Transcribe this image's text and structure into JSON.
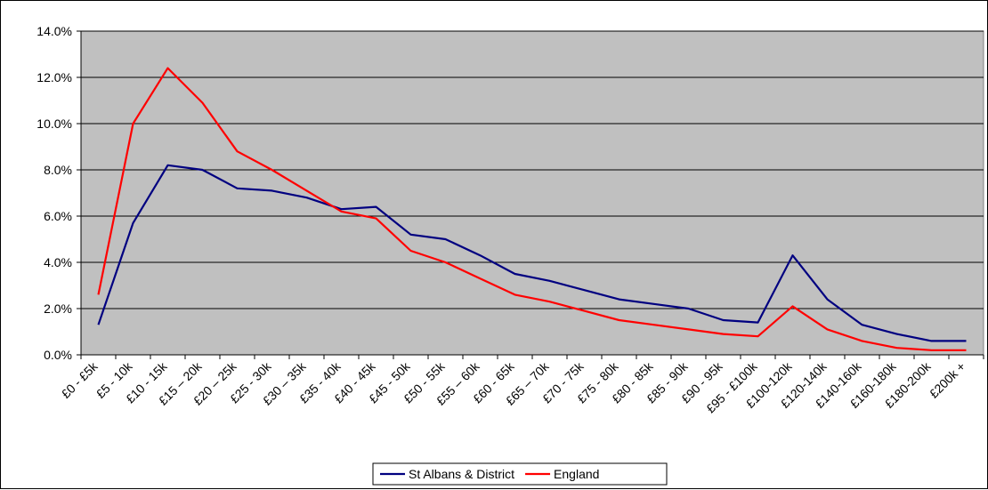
{
  "chart_data": {
    "type": "line",
    "title": "",
    "xlabel": "",
    "ylabel": "",
    "ylim": [
      0,
      0.14
    ],
    "y_ticks": [
      "0.0%",
      "2.0%",
      "4.0%",
      "6.0%",
      "8.0%",
      "10.0%",
      "12.0%",
      "14.0%"
    ],
    "y_tick_values": [
      0,
      0.02,
      0.04,
      0.06,
      0.08,
      0.1,
      0.12,
      0.14
    ],
    "grid": "horizontal",
    "legend_position": "bottom",
    "background_color": "#c0c0c0",
    "categories": [
      "£0 - £5k",
      "£5 - 10k",
      "£10 - 15k",
      "£15 – 20k",
      "£20 – 25k",
      "£25 - 30k",
      "£30 – 35k",
      "£35 - 40k",
      "£40 - 45k",
      "£45 - 50k",
      "£50 - 55k",
      "£55 – 60k",
      "£60 - 65k",
      "£65 – 70k",
      "£70 - 75k",
      "£75 - 80k",
      "£80 - 85k",
      "£85 - 90k",
      "£90 - 95k",
      "£95 - £100k",
      "£100-120k",
      "£120-140k",
      "£140-160k",
      "£160-180k",
      "£180-200k",
      "£200k +"
    ],
    "series": [
      {
        "name": "St Albans & District",
        "color": "#000080",
        "values": [
          0.013,
          0.057,
          0.082,
          0.08,
          0.072,
          0.071,
          0.068,
          0.063,
          0.064,
          0.052,
          0.05,
          0.043,
          0.035,
          0.032,
          0.028,
          0.024,
          0.022,
          0.02,
          0.015,
          0.014,
          0.043,
          0.024,
          0.013,
          0.009,
          0.006,
          0.006
        ]
      },
      {
        "name": "England",
        "color": "#ff0000",
        "values": [
          0.026,
          0.1,
          0.124,
          0.109,
          0.088,
          0.08,
          0.071,
          0.062,
          0.059,
          0.045,
          0.04,
          0.033,
          0.026,
          0.023,
          0.019,
          0.015,
          0.013,
          0.011,
          0.009,
          0.008,
          0.021,
          0.011,
          0.006,
          0.003,
          0.002,
          0.002
        ]
      }
    ]
  }
}
